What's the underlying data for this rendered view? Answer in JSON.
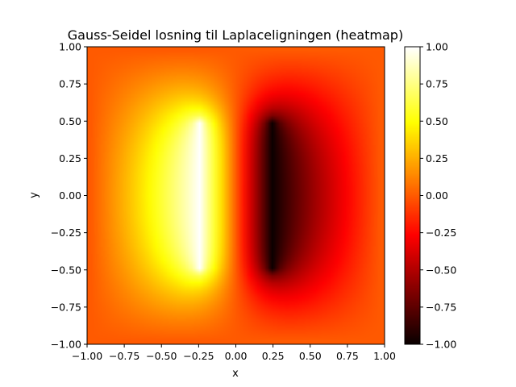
{
  "chart_data": {
    "type": "heatmap",
    "title": "Gauss-Seidel losning til Laplaceligningen (heatmap)",
    "xlabel": "x",
    "ylabel": "y",
    "xlim": [
      -1.0,
      1.0
    ],
    "ylim": [
      -1.0,
      1.0
    ],
    "x_ticks": [
      "−1.00",
      "−0.75",
      "−0.50",
      "−0.25",
      "0.00",
      "0.25",
      "0.50",
      "0.75",
      "1.00"
    ],
    "y_ticks": [
      "−1.00",
      "−0.75",
      "−0.50",
      "−0.25",
      "0.00",
      "0.25",
      "0.50",
      "0.75",
      "1.00"
    ],
    "colormap": "hot",
    "colorbar": {
      "range": [
        -1.0,
        1.0
      ],
      "ticks": [
        "−1.00",
        "−0.75",
        "−0.50",
        "−0.25",
        "0.00",
        "0.25",
        "0.50",
        "0.75",
        "1.00"
      ]
    },
    "boundary_conditions": [
      {
        "value": 1.0,
        "x": -0.25,
        "y_range": [
          -0.5,
          0.5
        ]
      },
      {
        "value": -1.0,
        "x": 0.25,
        "y_range": [
          -0.5,
          0.5
        ]
      },
      {
        "value": 0.0,
        "location": "outer boundary"
      }
    ],
    "grid": false
  }
}
